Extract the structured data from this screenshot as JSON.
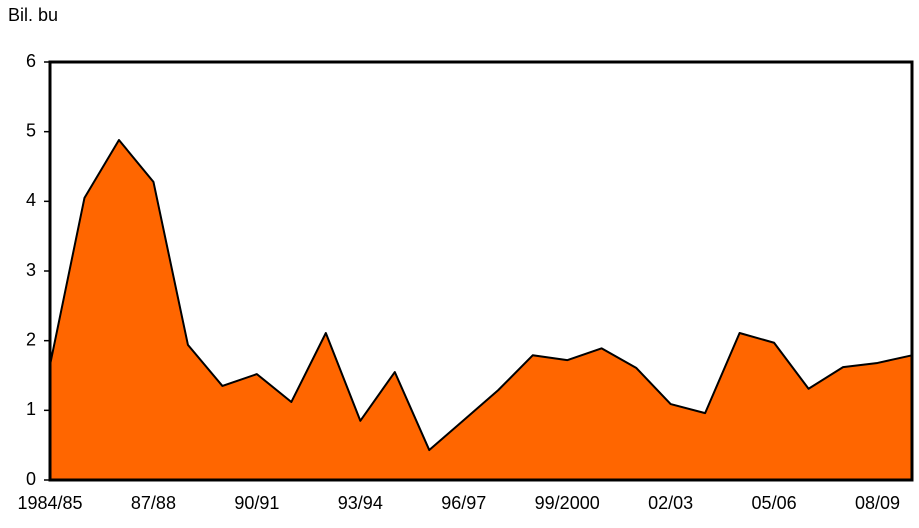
{
  "chart_data": {
    "type": "area",
    "y_axis_label": "Bil. bu",
    "categories": [
      "1984/85",
      null,
      null,
      "87/88",
      null,
      null,
      "90/91",
      null,
      null,
      "93/94",
      null,
      null,
      "96/97",
      null,
      null,
      "99/2000",
      null,
      null,
      "02/03",
      null,
      null,
      "05/06",
      null,
      null,
      "08/09",
      null
    ],
    "values": [
      1.65,
      4.05,
      4.88,
      4.28,
      1.94,
      1.35,
      1.52,
      1.12,
      2.11,
      0.85,
      1.55,
      0.43,
      0.86,
      1.29,
      1.79,
      1.72,
      1.89,
      1.61,
      1.09,
      0.96,
      2.11,
      1.97,
      1.31,
      1.62,
      1.68,
      1.79
    ],
    "color": "#ff6600",
    "ylim": [
      0,
      6
    ],
    "yticks": [
      0,
      1,
      2,
      3,
      4,
      5,
      6
    ],
    "grid": false
  }
}
